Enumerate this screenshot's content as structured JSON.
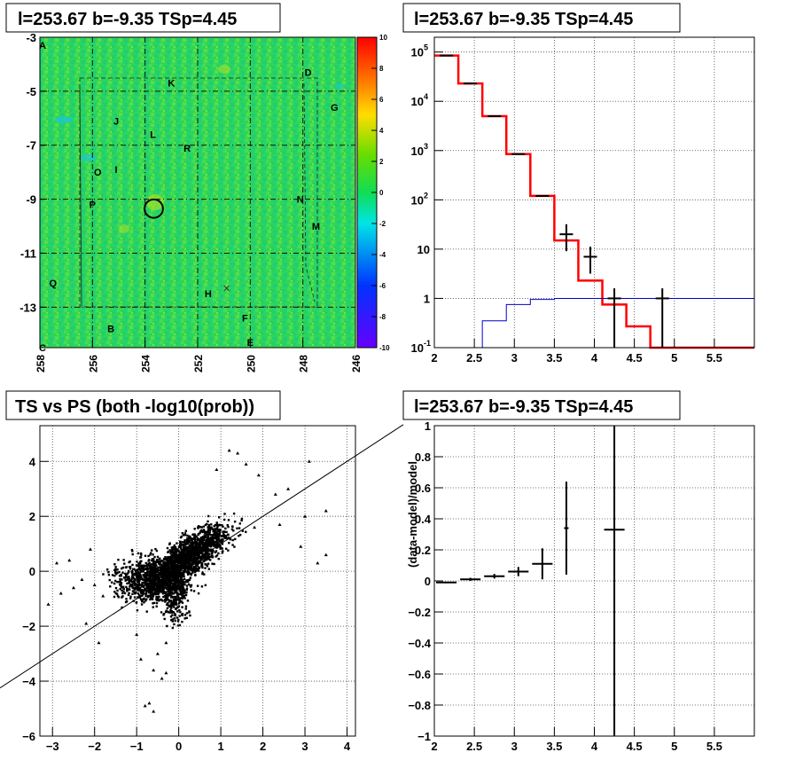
{
  "chart_data": [
    {
      "type": "heatmap",
      "title": "l=253.67 b=-9.35 TSp=4.45",
      "x_ticks": [
        "258",
        "256",
        "254",
        "252",
        "250",
        "248",
        "246"
      ],
      "y_ticks": [
        "-3",
        "-5",
        "-7",
        "-9",
        "-11",
        "-13"
      ],
      "xlim": [
        258,
        246
      ],
      "ylim": [
        -14.5,
        -3
      ],
      "colorbar": {
        "range": [
          -10,
          10
        ],
        "ticks": [
          "10",
          "8",
          "6",
          "4",
          "2",
          "0",
          "-2",
          "-4",
          "-6",
          "-8",
          "-10"
        ]
      },
      "source_circle": {
        "l": 253.67,
        "b": -9.35,
        "radius_deg": 0.35
      },
      "cross_marker": {
        "l": 250.9,
        "b": -12.3
      },
      "region_labels": [
        {
          "text": "A",
          "l": 257.9,
          "b": -3.3
        },
        {
          "text": "D",
          "l": 247.8,
          "b": -4.3
        },
        {
          "text": "K",
          "l": 253.0,
          "b": -4.7
        },
        {
          "text": "G",
          "l": 246.8,
          "b": -5.6
        },
        {
          "text": "J",
          "l": 255.1,
          "b": -6.1
        },
        {
          "text": "L",
          "l": 253.7,
          "b": -6.6
        },
        {
          "text": "R",
          "l": 252.4,
          "b": -7.1
        },
        {
          "text": "O",
          "l": 255.8,
          "b": -8.0
        },
        {
          "text": "I",
          "l": 255.1,
          "b": -7.9
        },
        {
          "text": "N",
          "l": 248.1,
          "b": -9.0
        },
        {
          "text": "P",
          "l": 256.0,
          "b": -9.2
        },
        {
          "text": "M",
          "l": 247.5,
          "b": -10.0
        },
        {
          "text": "Q",
          "l": 257.5,
          "b": -12.1
        },
        {
          "text": "H",
          "l": 251.6,
          "b": -12.5
        },
        {
          "text": "F",
          "l": 250.2,
          "b": -13.4
        },
        {
          "text": "B",
          "l": 255.3,
          "b": -13.8
        },
        {
          "text": "E",
          "l": 250.0,
          "b": -14.3
        },
        {
          "text": "C",
          "l": 257.9,
          "b": -14.5
        }
      ]
    },
    {
      "type": "line",
      "title": "l=253.67 b=-9.35 TSp=4.45",
      "xlim": [
        2,
        6
      ],
      "log_y": true,
      "ylim_log10": [
        -1,
        5.3
      ],
      "x_ticks": [
        "2",
        "2.5",
        "3",
        "3.5",
        "4",
        "4.5",
        "5",
        "5.5"
      ],
      "y_ticks": [
        {
          "base": "10",
          "exp": "5"
        },
        {
          "base": "10",
          "exp": "4"
        },
        {
          "base": "10",
          "exp": "3"
        },
        {
          "base": "10",
          "exp": "2"
        },
        {
          "base": "10",
          "exp": ""
        },
        {
          "base": "1",
          "exp": ""
        },
        {
          "base": "10",
          "exp": "-1"
        }
      ],
      "bin_edges": [
        2.0,
        2.3,
        2.6,
        2.9,
        3.2,
        3.5,
        3.8,
        4.1,
        4.4,
        4.7,
        5.0,
        6.0
      ],
      "series": [
        {
          "color": "#ff0000",
          "values": [
            85000,
            23000,
            5000,
            850,
            120,
            15,
            2.3,
            0.75,
            0.27,
            0.1,
            0.1
          ]
        },
        {
          "color": "#000000",
          "values": [
            85000,
            23000,
            5000,
            850,
            120,
            20,
            7,
            1.0,
            null,
            1.0,
            null
          ]
        },
        {
          "color": "#0000cc",
          "values": [
            null,
            0.09,
            0.35,
            0.75,
            0.95,
            1.0,
            1.0,
            1.0,
            1.0,
            1.0,
            1.0
          ]
        }
      ]
    },
    {
      "type": "scatter",
      "title": "TS vs PS (both -log10(prob))",
      "xlim": [
        -3.3,
        4.2
      ],
      "ylim": [
        -6,
        5.3
      ],
      "x_ticks": [
        "−3",
        "−2",
        "−1",
        "0",
        "1",
        "2",
        "3",
        "4"
      ],
      "y_ticks": [
        "4",
        "2",
        "0",
        "−2",
        "−4",
        "−6"
      ],
      "reference_line": {
        "slope": 1,
        "intercept": 0
      },
      "outlier_points": [
        [
          1.2,
          4.4
        ],
        [
          1.4,
          4.3
        ],
        [
          3.1,
          4.0
        ],
        [
          1.6,
          3.9
        ],
        [
          0.9,
          3.7
        ],
        [
          1.9,
          3.5
        ],
        [
          2.6,
          3.0
        ],
        [
          2.3,
          2.8
        ],
        [
          3.5,
          2.2
        ],
        [
          3.0,
          2.0
        ],
        [
          2.4,
          1.7
        ],
        [
          1.8,
          1.6
        ],
        [
          -2.1,
          0.8
        ],
        [
          -2.6,
          0.4
        ],
        [
          -2.9,
          0.3
        ],
        [
          -2.3,
          -0.3
        ],
        [
          -2.0,
          -0.5
        ],
        [
          -2.5,
          -0.6
        ],
        [
          -2.8,
          -0.8
        ],
        [
          -3.1,
          -1.2
        ],
        [
          -1.8,
          -0.9
        ],
        [
          -2.2,
          -1.9
        ],
        [
          -1.9,
          -2.6
        ],
        [
          -0.9,
          -3.2
        ],
        [
          -0.5,
          -3.0
        ],
        [
          -0.6,
          -3.6
        ],
        [
          -0.4,
          -3.9
        ],
        [
          -0.3,
          -3.7
        ],
        [
          -0.8,
          -4.9
        ],
        [
          -0.6,
          -5.1
        ],
        [
          -0.7,
          -4.8
        ],
        [
          3.5,
          0.6
        ],
        [
          3.3,
          0.3
        ],
        [
          2.9,
          0.9
        ],
        [
          -1.0,
          -2.3
        ],
        [
          -0.3,
          -2.6
        ]
      ]
    },
    {
      "type": "line",
      "title": "l=253.67 b=-9.35 TSp=4.45",
      "ylabel": "(data-model)/model",
      "xlim": [
        2,
        6
      ],
      "ylim": [
        -1,
        1
      ],
      "x_ticks": [
        "2",
        "2.5",
        "3",
        "3.5",
        "4",
        "4.5",
        "5",
        "5.5"
      ],
      "y_ticks": [
        "1",
        "0.8",
        "0.6",
        "0.4",
        "0.2",
        "0",
        "−0.2",
        "−0.4",
        "−0.6",
        "−0.8",
        "−1"
      ],
      "points": [
        {
          "x": 2.15,
          "y": -0.01,
          "xerr": 0.15,
          "yerr": 0.005
        },
        {
          "x": 2.45,
          "y": 0.01,
          "xerr": 0.15,
          "yerr": 0.01
        },
        {
          "x": 2.75,
          "y": 0.03,
          "xerr": 0.15,
          "yerr": 0.015
        },
        {
          "x": 3.05,
          "y": 0.06,
          "xerr": 0.15,
          "yerr": 0.03
        },
        {
          "x": 3.35,
          "y": 0.11,
          "xerr": 0.15,
          "yerr": 0.1
        },
        {
          "x": 3.65,
          "y": 0.34,
          "xerr": 0.05,
          "yerr": 0.3
        },
        {
          "x": 4.25,
          "y": 0.33,
          "xerr": 0.15,
          "yerr": 1.5
        }
      ]
    }
  ]
}
